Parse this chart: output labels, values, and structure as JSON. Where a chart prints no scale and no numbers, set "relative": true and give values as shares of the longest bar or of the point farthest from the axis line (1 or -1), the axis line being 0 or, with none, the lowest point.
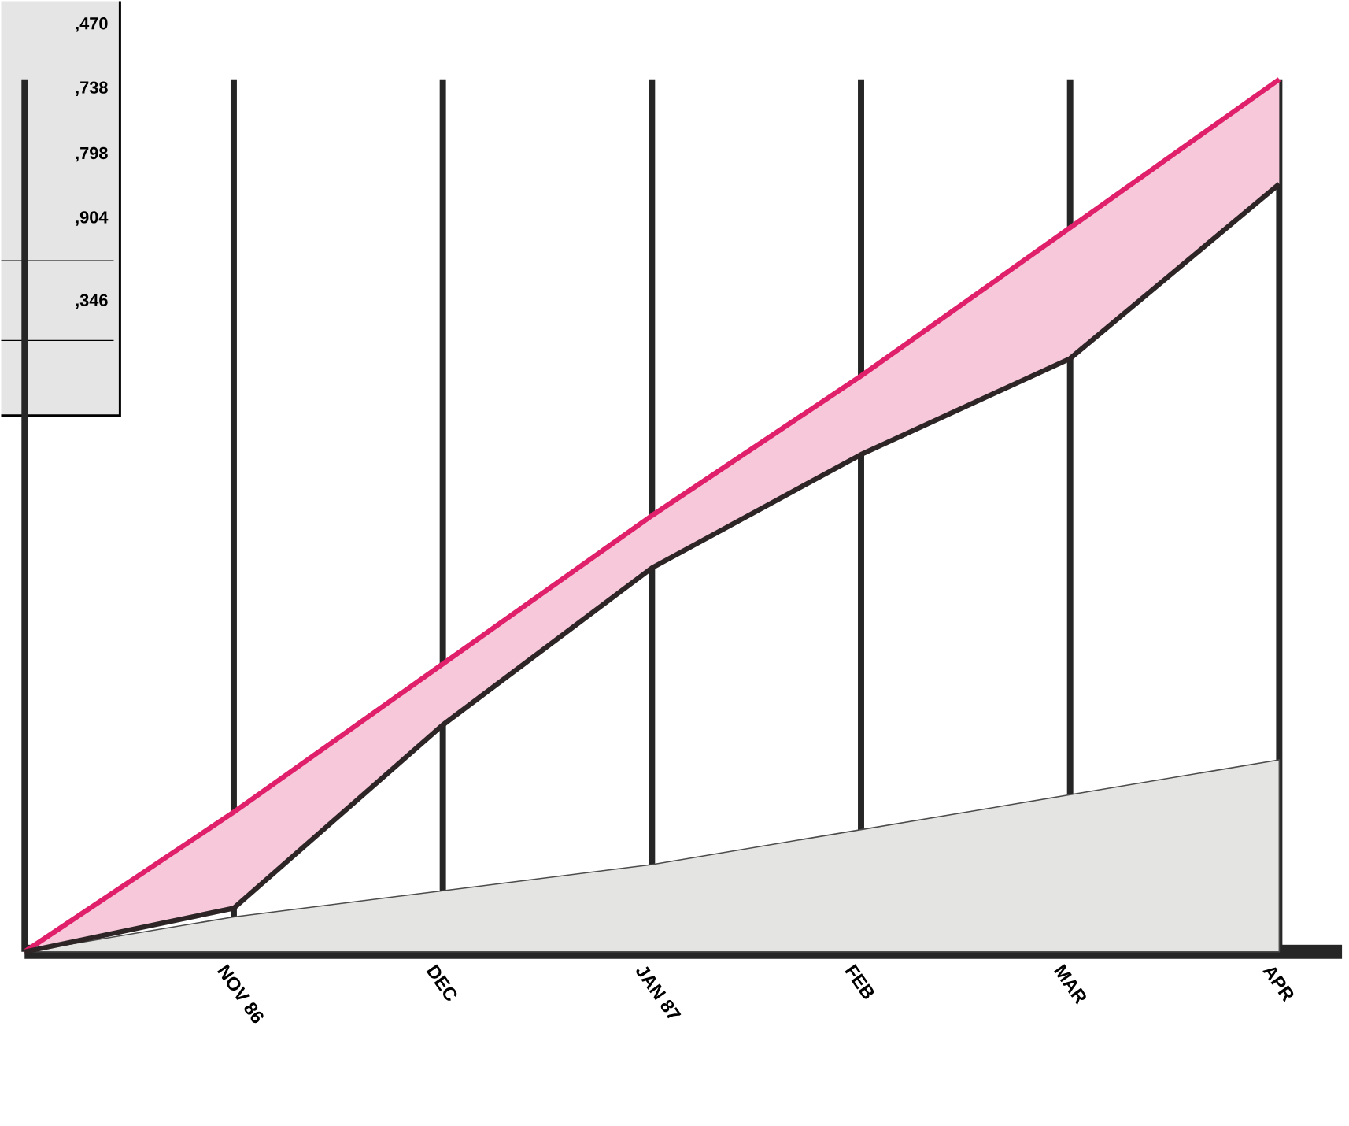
{
  "chart_data": {
    "type": "line",
    "relative": true,
    "categories": [
      null,
      "NOV 86",
      "DEC",
      "JAN 87",
      "FEB",
      "MAR",
      "APR"
    ],
    "series": [
      {
        "type": "area",
        "color": "#e4e4e2",
        "values": [
          0,
          0.04,
          0.07,
          0.1,
          0.14,
          0.18,
          0.22
        ]
      },
      {
        "color": "#e0206a",
        "values": [
          0,
          0.16,
          0.33,
          0.5,
          0.66,
          0.83,
          1.0
        ],
        "lower": [
          0,
          0.05,
          0.26,
          0.44,
          0.57,
          0.68,
          0.88
        ],
        "upper": [
          0,
          0.16,
          0.33,
          0.5,
          0.66,
          0.83,
          1.0
        ]
      },
      {
        "color": "#2e2626",
        "values": [
          0,
          0.05,
          0.26,
          0.44,
          0.57,
          0.68,
          0.88
        ]
      }
    ],
    "grid": "x",
    "tick_labels": "x",
    "marker": "none",
    "line_style": "solid",
    "annotations": [
      ",470",
      ",738",
      ",798",
      ",904",
      ",346"
    ]
  }
}
